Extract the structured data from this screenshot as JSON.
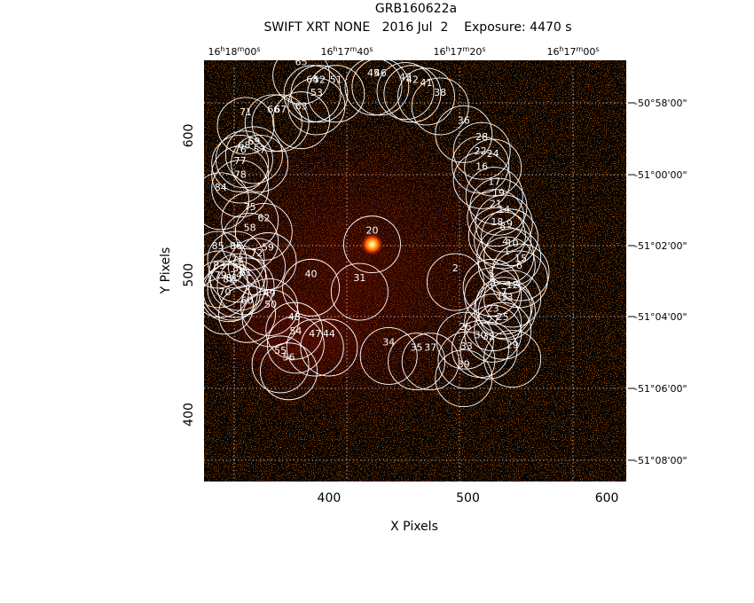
{
  "chart_data": {
    "type": "heatmap",
    "title": "GRB160622a",
    "subtitle": "SWIFT XRT NONE   2016 Jul  2    Exposure: 4470 s",
    "xlabel": "X Pixels",
    "ylabel": "Y Pixels",
    "xlim": [
      310,
      614
    ],
    "ylim": [
      352,
      654
    ],
    "x_ticks": [
      400,
      500,
      600
    ],
    "y_ticks": [
      400,
      500,
      600
    ],
    "ra_ticks": [
      "16h18m00s",
      "16h17m40s",
      "16h17m20s",
      "16h17m00s"
    ],
    "dec_ticks": [
      "-50°58'00\"",
      "-51°00'00\"",
      "-51°02'00\"",
      "-51°04'00\"",
      "-51°06'00\"",
      "-51°08'00\""
    ],
    "grid": true,
    "colormap": "black-red-yellow-white",
    "source": {
      "x": 431,
      "y": 522
    },
    "regions": [
      {
        "id": "1",
        "x": 528,
        "y": 507
      },
      {
        "id": "2",
        "x": 491,
        "y": 495
      },
      {
        "id": "3",
        "x": 518,
        "y": 485
      },
      {
        "id": "4",
        "x": 527,
        "y": 514
      },
      {
        "id": "5",
        "x": 517,
        "y": 491
      },
      {
        "id": "6",
        "x": 537,
        "y": 497
      },
      {
        "id": "7",
        "x": 526,
        "y": 478
      },
      {
        "id": "8",
        "x": 525,
        "y": 525
      },
      {
        "id": "9",
        "x": 530,
        "y": 527
      },
      {
        "id": "10",
        "x": 532,
        "y": 513
      },
      {
        "id": "11",
        "x": 525,
        "y": 475
      },
      {
        "id": "12",
        "x": 532,
        "y": 483
      },
      {
        "id": "13",
        "x": 528,
        "y": 474
      },
      {
        "id": "14",
        "x": 526,
        "y": 537
      },
      {
        "id": "15",
        "x": 538,
        "y": 502
      },
      {
        "id": "16",
        "x": 510,
        "y": 568
      },
      {
        "id": "17",
        "x": 519,
        "y": 557
      },
      {
        "id": "18",
        "x": 521,
        "y": 528
      },
      {
        "id": "19",
        "x": 522,
        "y": 549
      },
      {
        "id": "20",
        "x": 431,
        "y": 522
      },
      {
        "id": "21",
        "x": 520,
        "y": 541
      },
      {
        "id": "22",
        "x": 509,
        "y": 579
      },
      {
        "id": "23",
        "x": 518,
        "y": 466
      },
      {
        "id": "24",
        "x": 518,
        "y": 577
      },
      {
        "id": "25",
        "x": 525,
        "y": 460
      },
      {
        "id": "26",
        "x": 498,
        "y": 453
      },
      {
        "id": "27",
        "x": 518,
        "y": 458
      },
      {
        "id": "28",
        "x": 510,
        "y": 589
      },
      {
        "id": "29",
        "x": 532,
        "y": 440
      },
      {
        "id": "30",
        "x": 509,
        "y": 447
      },
      {
        "id": "31",
        "x": 422,
        "y": 488
      },
      {
        "id": "32",
        "x": 515,
        "y": 446
      },
      {
        "id": "33",
        "x": 499,
        "y": 439
      },
      {
        "id": "34",
        "x": 443,
        "y": 442
      },
      {
        "id": "35",
        "x": 463,
        "y": 438
      },
      {
        "id": "36",
        "x": 497,
        "y": 601
      },
      {
        "id": "37",
        "x": 473,
        "y": 438
      },
      {
        "id": "38",
        "x": 480,
        "y": 621
      },
      {
        "id": "39",
        "x": 497,
        "y": 426
      },
      {
        "id": "40",
        "x": 387,
        "y": 491
      },
      {
        "id": "41",
        "x": 470,
        "y": 628
      },
      {
        "id": "42",
        "x": 460,
        "y": 630
      },
      {
        "id": "43",
        "x": 455,
        "y": 632
      },
      {
        "id": "44",
        "x": 400,
        "y": 448
      },
      {
        "id": "45",
        "x": 432,
        "y": 635
      },
      {
        "id": "46",
        "x": 437,
        "y": 635
      },
      {
        "id": "47",
        "x": 390,
        "y": 448
      },
      {
        "id": "48",
        "x": 375,
        "y": 460
      },
      {
        "id": "49",
        "x": 357,
        "y": 477
      },
      {
        "id": "50",
        "x": 358,
        "y": 469
      },
      {
        "id": "51",
        "x": 405,
        "y": 630
      },
      {
        "id": "52",
        "x": 393,
        "y": 630
      },
      {
        "id": "53",
        "x": 391,
        "y": 621
      },
      {
        "id": "54",
        "x": 376,
        "y": 450
      },
      {
        "id": "55",
        "x": 365,
        "y": 436
      },
      {
        "id": "56",
        "x": 371,
        "y": 431
      },
      {
        "id": "57",
        "x": 350,
        "y": 580
      },
      {
        "id": "58",
        "x": 343,
        "y": 524
      },
      {
        "id": "59",
        "x": 356,
        "y": 510
      },
      {
        "id": "60",
        "x": 341,
        "y": 472
      },
      {
        "id": "61",
        "x": 340,
        "y": 492
      },
      {
        "id": "62",
        "x": 353,
        "y": 531
      },
      {
        "id": "63",
        "x": 380,
        "y": 611
      },
      {
        "id": "64",
        "x": 388,
        "y": 630
      },
      {
        "id": "65",
        "x": 380,
        "y": 643
      },
      {
        "id": "66",
        "x": 360,
        "y": 609
      },
      {
        "id": "67",
        "x": 365,
        "y": 609
      },
      {
        "id": "68",
        "x": 339,
        "y": 583
      },
      {
        "id": "69",
        "x": 346,
        "y": 586
      },
      {
        "id": "70",
        "x": 325,
        "y": 478
      },
      {
        "id": "71",
        "x": 340,
        "y": 607
      },
      {
        "id": "72",
        "x": 348,
        "y": 506
      },
      {
        "id": "73",
        "x": 334,
        "y": 501
      },
      {
        "id": "74",
        "x": 333,
        "y": 490
      },
      {
        "id": "75",
        "x": 343,
        "y": 539
      },
      {
        "id": "76",
        "x": 336,
        "y": 580
      },
      {
        "id": "77",
        "x": 336,
        "y": 572
      },
      {
        "id": "78",
        "x": 336,
        "y": 562
      },
      {
        "id": "79",
        "x": 322,
        "y": 490
      },
      {
        "id": "80",
        "x": 335,
        "y": 495
      },
      {
        "id": "81",
        "x": 330,
        "y": 488
      },
      {
        "id": "82",
        "x": 328,
        "y": 487
      },
      {
        "id": "83",
        "x": 321,
        "y": 497
      },
      {
        "id": "84",
        "x": 322,
        "y": 553
      },
      {
        "id": "85",
        "x": 320,
        "y": 511
      },
      {
        "id": "86",
        "x": 333,
        "y": 511
      }
    ]
  }
}
